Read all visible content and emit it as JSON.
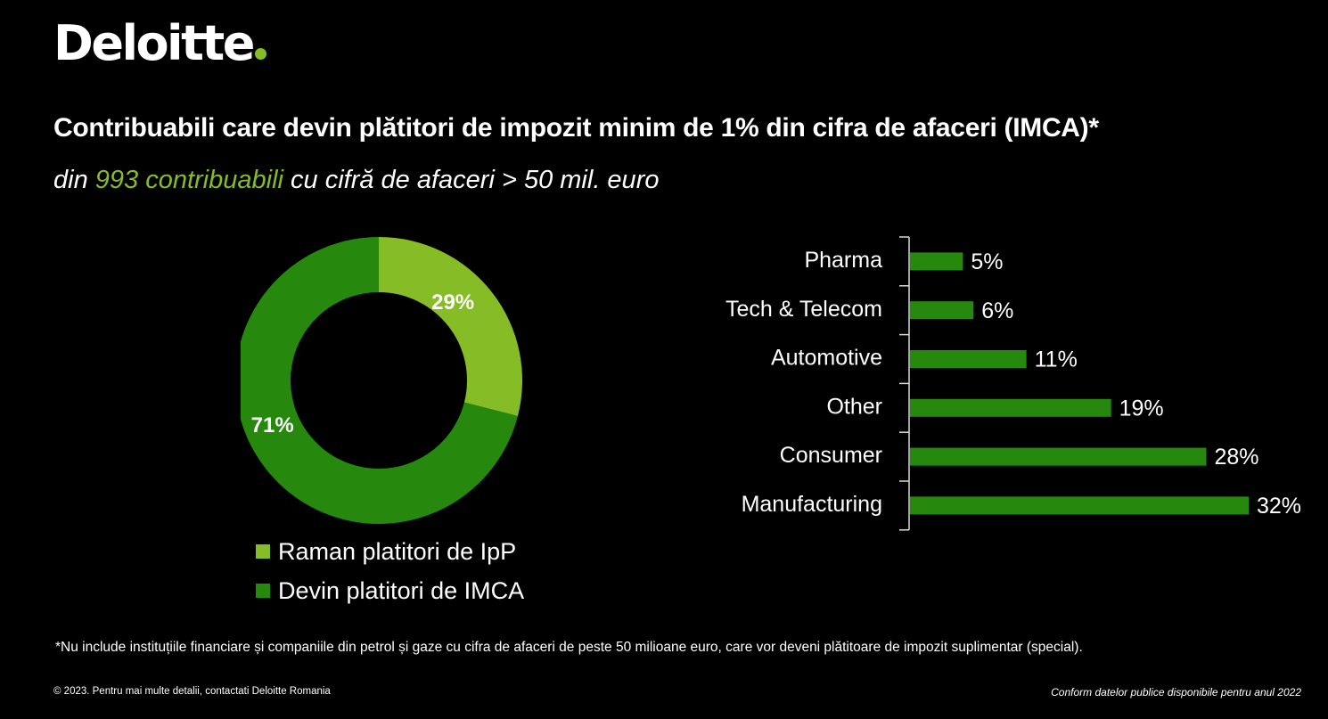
{
  "brand": {
    "name": "Deloitte",
    "dot_color": "#86bc25"
  },
  "header": {
    "title": "Contribuabili care devin plătitori de impozit minim de 1% din cifra de afaceri (IMCA)*",
    "subtitle_prefix": "din ",
    "subtitle_highlight": "993 contribuabili",
    "subtitle_suffix": " cu cifră de afaceri > 50 mil. euro",
    "highlight_color": "#86bc25"
  },
  "chart_data": [
    {
      "type": "pie",
      "variant": "donut",
      "title": "",
      "categories": [
        "Raman platitori de IpP",
        "Devin platitori de IMCA"
      ],
      "values": [
        29,
        71
      ],
      "labels": [
        "29%",
        "71%"
      ],
      "colors": [
        "#86bc25",
        "#26890d"
      ],
      "legend_position": "bottom-left"
    },
    {
      "type": "bar",
      "orientation": "horizontal",
      "title": "",
      "categories": [
        "Pharma",
        "Tech & Telecom",
        "Automotive",
        "Other",
        "Consumer",
        "Manufacturing"
      ],
      "values": [
        5,
        6,
        11,
        19,
        28,
        32
      ],
      "labels": [
        "5%",
        "6%",
        "11%",
        "19%",
        "28%",
        "32%"
      ],
      "xlabel": "",
      "ylabel": "",
      "xlim": [
        0,
        32
      ],
      "grid": false,
      "bar_color": "#26890d"
    }
  ],
  "footer": {
    "footnote": "*Nu include instituțiile financiare și companiile din petrol și gaze cu cifra de afaceri de peste 50 milioane euro, care vor deveni plătitoare de impozit suplimentar (special).",
    "copyright": "© 2023. Pentru mai multe detalii, contactati Deloitte Romania",
    "source": "Conform datelor publice disponibile pentru anul 2022"
  }
}
